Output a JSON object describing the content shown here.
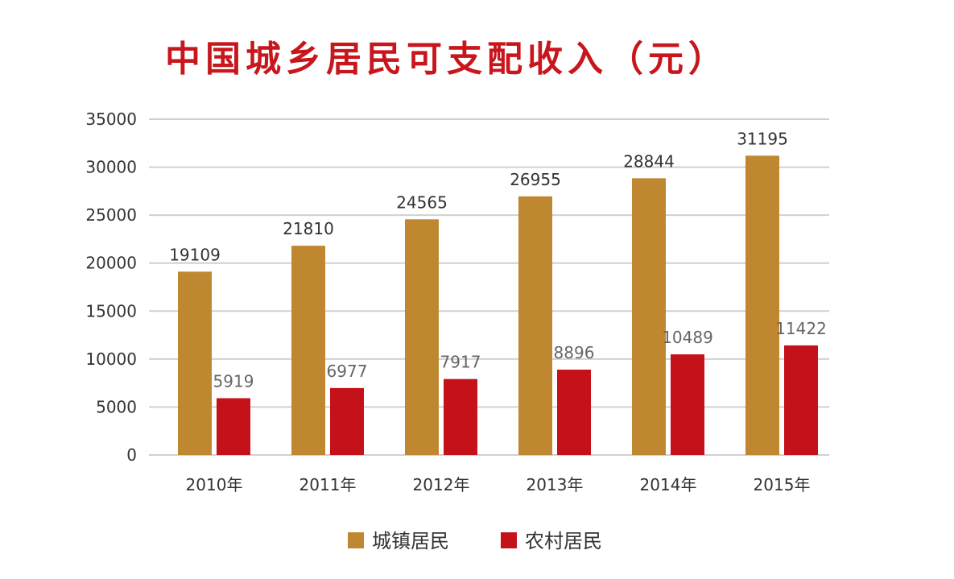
{
  "colors": {
    "title": "#c8161d",
    "urban": "#bf8830",
    "rural": "#c5121a",
    "grid": "#d0d0d0",
    "urban_label": "#333333",
    "rural_label": "#666666"
  },
  "chart_data": {
    "type": "bar",
    "title": "中国城乡居民可支配收入（元）",
    "categories": [
      "2010年",
      "2011年",
      "2012年",
      "2013年",
      "2014年",
      "2015年"
    ],
    "series": [
      {
        "name": "城镇居民",
        "values": [
          19109,
          21810,
          24565,
          26955,
          28844,
          31195
        ]
      },
      {
        "name": "农村居民",
        "values": [
          5919,
          6977,
          7917,
          8896,
          10489,
          11422
        ]
      }
    ],
    "ylim": [
      0,
      35000
    ],
    "yticks": [
      0,
      5000,
      10000,
      15000,
      20000,
      25000,
      30000,
      35000
    ],
    "grid": true,
    "legend": "bottom",
    "data_labels": true
  }
}
